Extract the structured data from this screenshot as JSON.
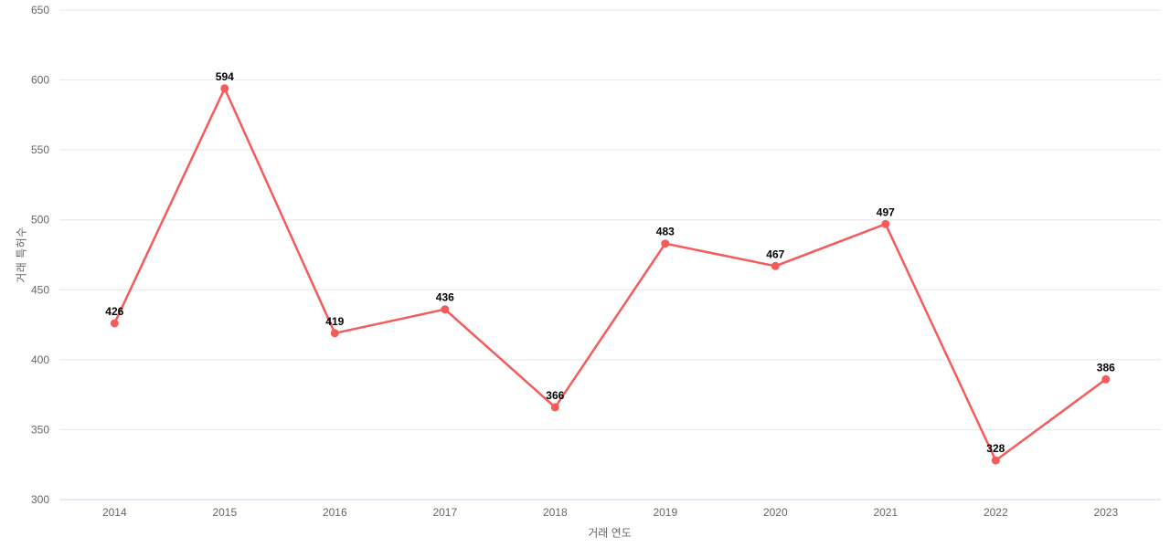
{
  "chart_data": {
    "type": "line",
    "categories": [
      "2014",
      "2015",
      "2016",
      "2017",
      "2018",
      "2019",
      "2020",
      "2021",
      "2022",
      "2023"
    ],
    "values": [
      426,
      594,
      419,
      436,
      366,
      483,
      467,
      497,
      328,
      386
    ],
    "title": "",
    "xlabel": "거래 연도",
    "ylabel": "거래 특허수",
    "ylim": [
      300,
      650
    ],
    "yticks": [
      300,
      350,
      400,
      450,
      500,
      550,
      600,
      650
    ],
    "grid": true,
    "legend": "none",
    "data_labels_visible": true,
    "colors": {
      "line": "#f45b5b",
      "marker": "#f45b5b",
      "grid_line": "#e6e6e6",
      "axis_line": "#ccd6eb",
      "tick_label": "#666666",
      "axis_title": "#666666",
      "data_label": "#000000",
      "background": "#ffffff"
    }
  }
}
